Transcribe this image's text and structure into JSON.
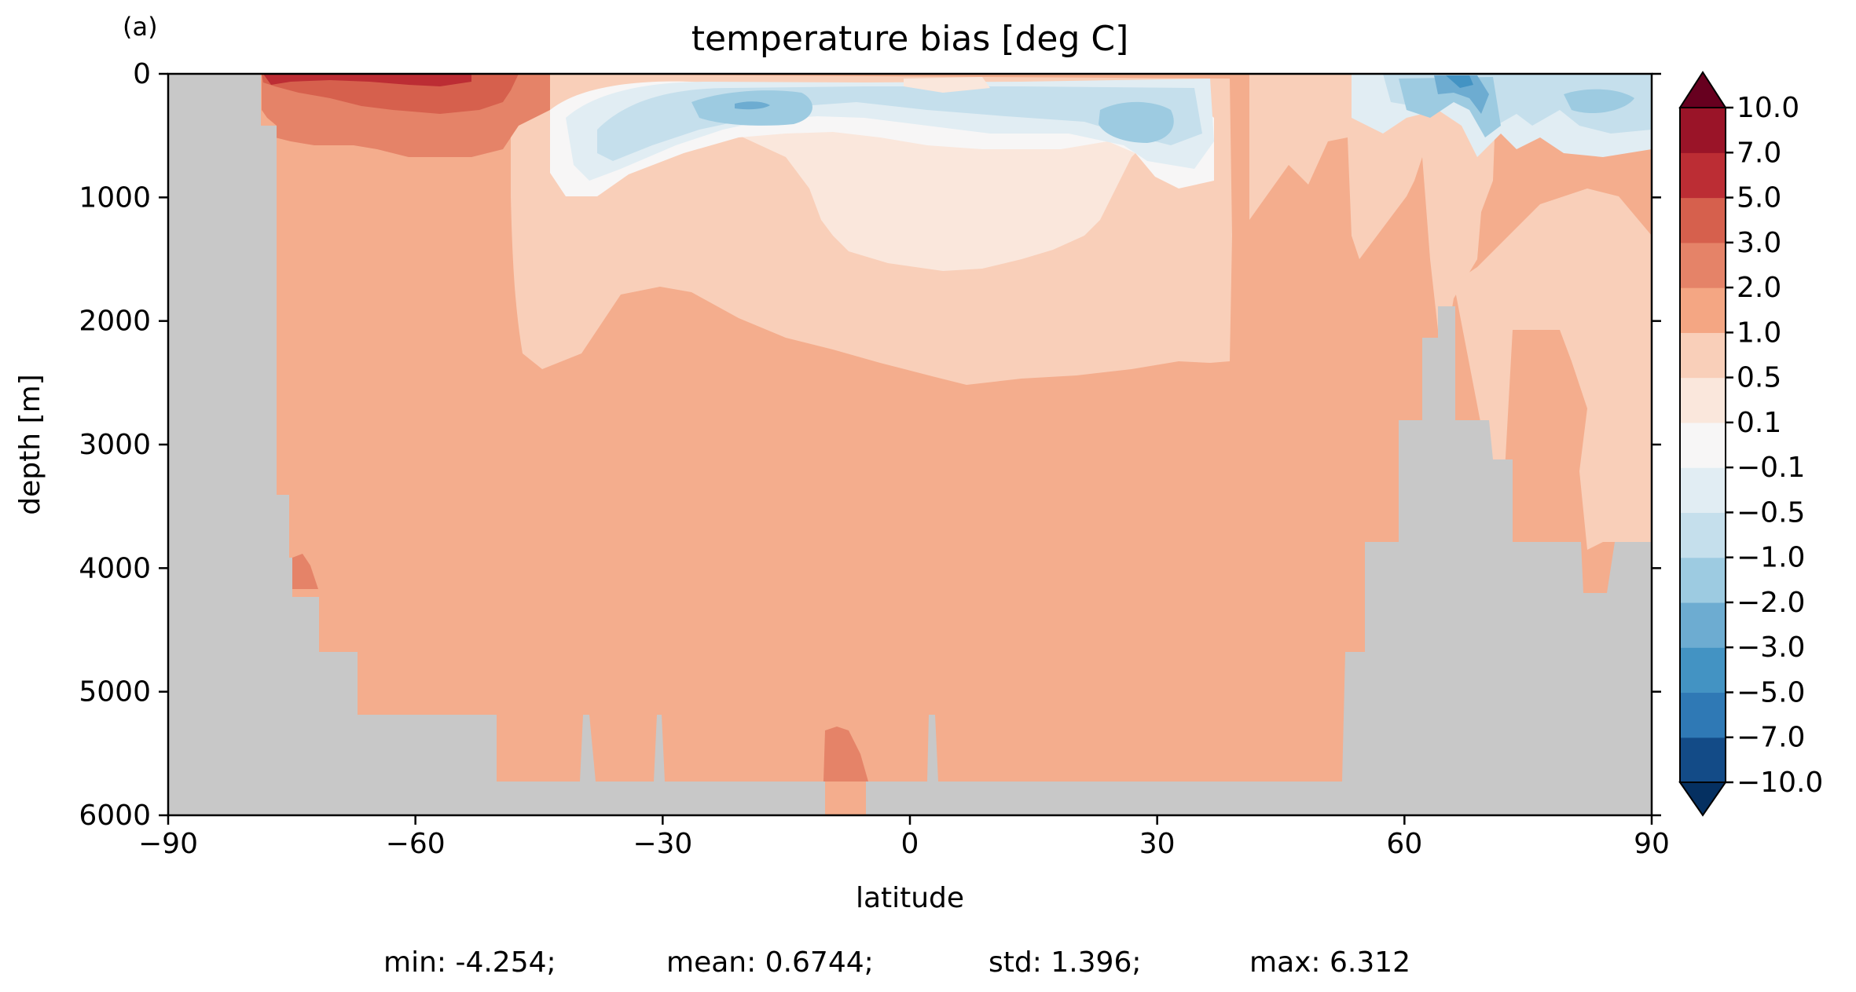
{
  "panel_label": "(a)",
  "chart_data": {
    "type": "heatmap",
    "subtype": "filled-contour depth-latitude section",
    "title": "temperature bias [deg C]",
    "xlabel": "latitude",
    "ylabel": "depth [m]",
    "xlim": [
      -90,
      90
    ],
    "ylim": [
      6000,
      0
    ],
    "y_inverted": true,
    "x_ticks": [
      -90,
      -60,
      -30,
      0,
      30,
      60,
      90
    ],
    "x_tick_labels": [
      "−90",
      "−60",
      "−30",
      "0",
      "30",
      "60",
      "90"
    ],
    "y_ticks": [
      0,
      1000,
      2000,
      3000,
      4000,
      5000,
      6000
    ],
    "y_tick_labels": [
      "0",
      "1000",
      "2000",
      "3000",
      "4000",
      "5000",
      "6000"
    ],
    "land_color": "#c8c8c8",
    "colorbar": {
      "levels": [
        -10.0,
        -7.0,
        -5.0,
        -3.0,
        -2.0,
        -1.0,
        -0.5,
        -0.1,
        0.1,
        0.5,
        1.0,
        2.0,
        3.0,
        5.0,
        7.0,
        10.0
      ],
      "level_labels": [
        "−10.0",
        "−7.0",
        "−5.0",
        "−3.0",
        "−2.0",
        "−1.0",
        "−0.5",
        "−0.1",
        "0.1",
        "0.5",
        "1.0",
        "2.0",
        "3.0",
        "5.0",
        "7.0",
        "10.0"
      ],
      "colors": [
        "#053061",
        "#134b87",
        "#2f79b5",
        "#4393c3",
        "#6dacd1",
        "#9dcbe1",
        "#c5dfec",
        "#e1edf3",
        "#f7f6f6",
        "#fae7dc",
        "#f9cfb9",
        "#f4a683",
        "#e58368",
        "#d6604d",
        "#bc2d34",
        "#9a1428",
        "#67001f"
      ],
      "extend": "both"
    },
    "regions": [
      {
        "level": "1.0 to 2.0",
        "color": "#f4ad8d",
        "area": "deep ocean below ~2300 m, 78S to 55N; upper-middle layers south of 45S and 36-52N"
      },
      {
        "level": "0.5 to 1.0",
        "color": "#f9cfb9",
        "area": "intermediate waters 45S-40N around 500-2500 m; Arctic deep basin"
      },
      {
        "level": "0.1 to 0.5",
        "color": "#fae7dc",
        "area": "around 20S-20N at 800-1600 m"
      },
      {
        "level": "-0.1 to 0.1",
        "color": "#f7f6f6",
        "area": "thin layer surrounding negative cores"
      },
      {
        "level": "-0.5 to -0.1",
        "color": "#e1edf3",
        "area": "upper 800 m, 45S-36N"
      },
      {
        "level": "-1.0 to -0.5",
        "color": "#c5dfec",
        "area": "upper 600 m, 42S-35N and 57N-90N"
      },
      {
        "level": "-2.0 to -1.0",
        "color": "#9dcbe1",
        "area": "cores near 25S-15S and 15N-25N at 100-500 m"
      },
      {
        "level": "-3.0 to -2.0",
        "color": "#6dacd1",
        "area": "near 65N surface"
      },
      {
        "level": "2.0 to 3.0",
        "color": "#e58368",
        "area": "Southern Ocean 78S-48S, 0-700 m; small patches near 5700 m"
      },
      {
        "level": "3.0 to 5.0",
        "color": "#d6604d",
        "area": "Southern Ocean 76S-50S, upper 350 m"
      },
      {
        "level": "5.0 to 7.0",
        "color": "#bc2d34",
        "area": "near surface 70S-55S"
      }
    ]
  },
  "stats": {
    "min": "min: -4.254;",
    "mean": "mean: 0.6744;",
    "std": "std: 1.396;",
    "max": "max: 6.312"
  }
}
